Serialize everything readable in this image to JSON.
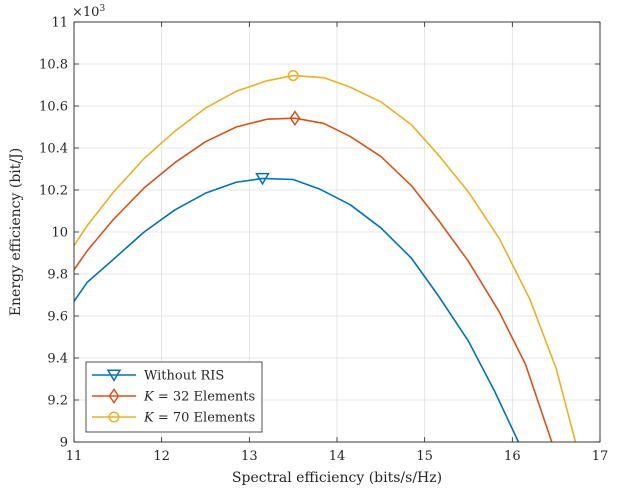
{
  "chart_data": {
    "type": "line",
    "xlabel": "Spectral efficiency (bits/s/Hz)",
    "ylabel": "Energy efficiency (bit/J)",
    "y_exponent_label": "×10",
    "y_exponent_power": "3",
    "xlim": [
      11,
      17
    ],
    "ylim": [
      9,
      11
    ],
    "x_ticks": [
      "11",
      "12",
      "13",
      "14",
      "15",
      "16",
      "17"
    ],
    "y_ticks": [
      "9",
      "9.2",
      "9.4",
      "9.6",
      "9.8",
      "10",
      "10.2",
      "10.4",
      "10.6",
      "10.8",
      "11"
    ],
    "grid": true,
    "legend_position": "bottom-left",
    "series": [
      {
        "name": "Without RIS",
        "color": "#0072BD",
        "marker": "triangle-down",
        "marker_point": [
          13.15,
          10.255
        ],
        "x": [
          11.0,
          11.15,
          11.45,
          11.8,
          12.15,
          12.5,
          12.85,
          13.15,
          13.5,
          13.8,
          14.15,
          14.5,
          14.85,
          15.15,
          15.5,
          15.8,
          16.07
        ],
        "y": [
          9.67,
          9.76,
          9.87,
          10.0,
          10.105,
          10.185,
          10.237,
          10.255,
          10.25,
          10.205,
          10.13,
          10.02,
          9.875,
          9.7,
          9.48,
          9.24,
          9.0
        ]
      },
      {
        "name": "K = 32 Elements",
        "color": "#D95319",
        "marker": "diamond",
        "marker_point": [
          13.52,
          10.542
        ],
        "x": [
          11.0,
          11.15,
          11.45,
          11.8,
          12.15,
          12.5,
          12.85,
          13.2,
          13.52,
          13.85,
          14.15,
          14.5,
          14.85,
          15.15,
          15.5,
          15.85,
          16.15,
          16.45
        ],
        "y": [
          9.82,
          9.91,
          10.06,
          10.21,
          10.33,
          10.43,
          10.5,
          10.537,
          10.542,
          10.517,
          10.455,
          10.36,
          10.22,
          10.06,
          9.86,
          9.62,
          9.37,
          9.0
        ]
      },
      {
        "name": "K = 70 Elements",
        "color": "#EDB120",
        "marker": "circle",
        "marker_point": [
          13.5,
          10.745
        ],
        "x": [
          11.0,
          11.15,
          11.45,
          11.8,
          12.15,
          12.5,
          12.85,
          13.2,
          13.5,
          13.85,
          14.15,
          14.5,
          14.85,
          15.15,
          15.5,
          15.85,
          16.2,
          16.5,
          16.72
        ],
        "y": [
          9.935,
          10.03,
          10.19,
          10.35,
          10.48,
          10.59,
          10.67,
          10.72,
          10.745,
          10.735,
          10.69,
          10.62,
          10.51,
          10.37,
          10.19,
          9.97,
          9.68,
          9.35,
          9.0
        ]
      }
    ]
  }
}
